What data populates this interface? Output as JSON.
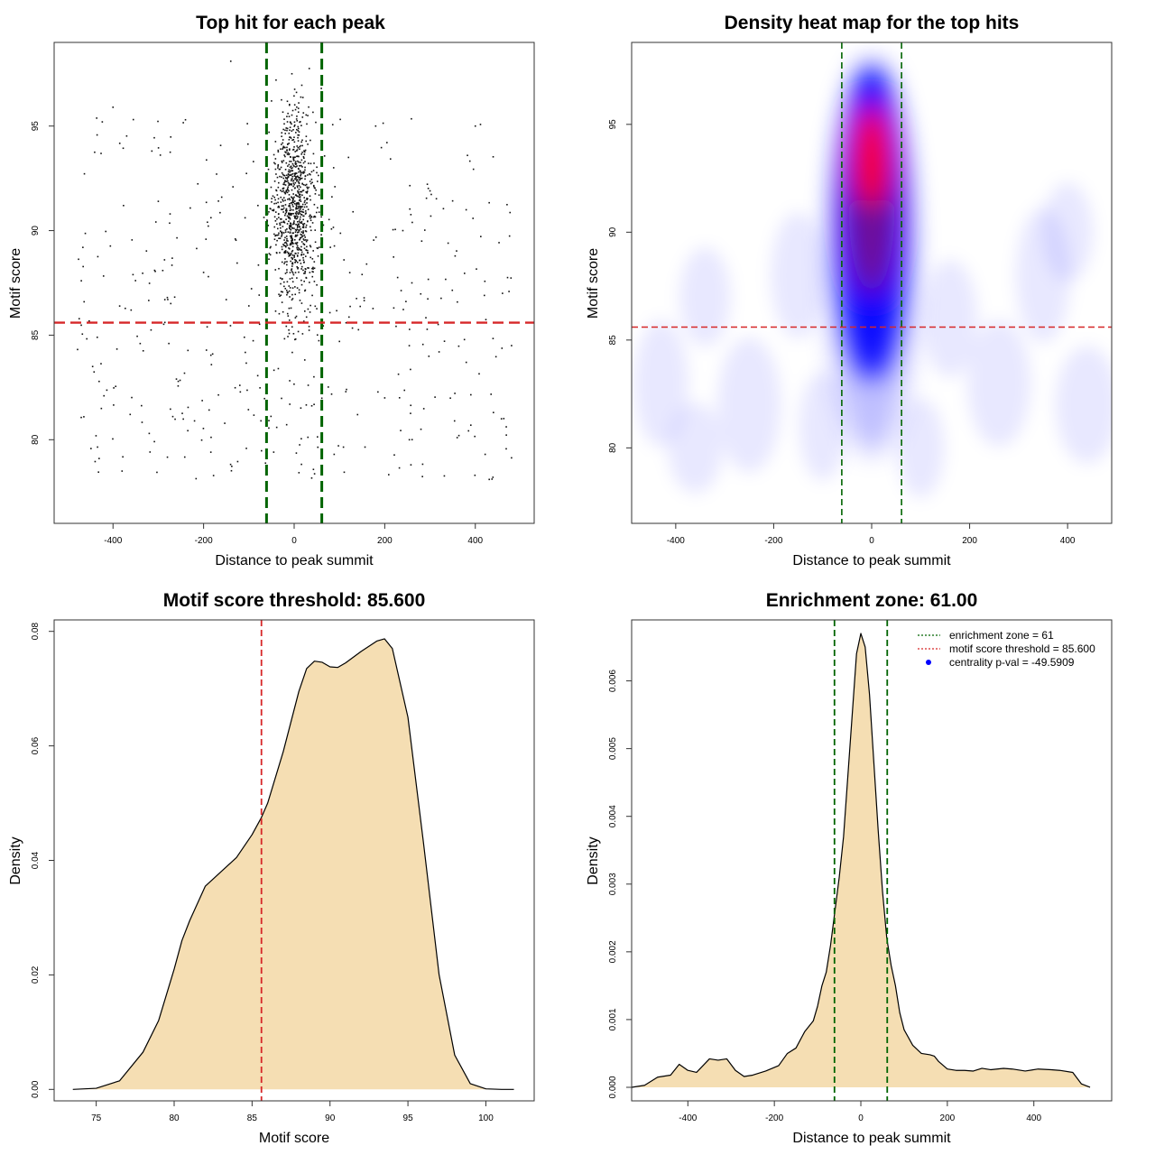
{
  "colors": {
    "threshold_red": "#d62728",
    "zone_green": "#006400",
    "density_fill": "#f5deb3",
    "heat_low": "#ffffff",
    "heat_mid": "#0000ff",
    "heat_high": "#ff0000"
  },
  "chart_data": [
    {
      "type": "scatter",
      "title": "Top hit for each peak",
      "xlabel": "Distance to peak summit",
      "ylabel": "Motif score",
      "xlim": [
        -530,
        530
      ],
      "ylim": [
        76.0,
        99.0
      ],
      "xticks": [
        -400,
        -200,
        0,
        200,
        400
      ],
      "yticks": [
        80,
        85,
        90,
        95
      ],
      "hlines": [
        85.6
      ],
      "vlines": [
        -61,
        61
      ],
      "point_sample": {
        "x": [
          -470,
          -445,
          -420,
          -400,
          -380,
          -360,
          -340,
          -320,
          -300,
          -280,
          -260,
          -240,
          -220,
          -200,
          -180,
          -160,
          -140,
          -120,
          -100,
          -80,
          -60,
          -40,
          -20,
          0,
          20,
          40,
          60,
          80,
          100,
          120,
          140,
          160,
          180,
          200,
          220,
          240,
          260,
          280,
          300,
          320,
          340,
          360,
          380,
          400,
          420,
          440,
          460,
          480,
          -60,
          -40,
          -20,
          0,
          20,
          40,
          60,
          -50,
          -30,
          -10,
          10,
          30,
          50,
          -45,
          -15,
          15,
          45,
          -5,
          5,
          -25,
          25,
          -35,
          35,
          -55,
          55,
          -130,
          130,
          -150,
          150,
          -90,
          90,
          -110,
          110
        ],
        "y": [
          87.6,
          83.5,
          82.1,
          95.9,
          78.5,
          86.2,
          84.6,
          80.3,
          91.4,
          86.8,
          82.9,
          95.3,
          80.9,
          88.0,
          84.1,
          91.6,
          98.1,
          82.6,
          86.4,
          91.2,
          93.4,
          97.2,
          88.5,
          94.0,
          90.3,
          86.9,
          96.8,
          89.2,
          84.7,
          93.5,
          81.2,
          88.4,
          95.0,
          82.0,
          86.3,
          90.0,
          87.5,
          80.5,
          91.9,
          84.2,
          89.4,
          80.1,
          83.7,
          95.0,
          86.9,
          81.3,
          87.0,
          84.5,
          90.5,
          92.7,
          94.8,
          91.6,
          88.7,
          92.3,
          89.8,
          96.2,
          93.9,
          90.1,
          92.8,
          95.5,
          87.4,
          91.0,
          89.3,
          93.1,
          88.2,
          97.5,
          85.9,
          92.0,
          90.8,
          83.4,
          86.1,
          88.9,
          91.7,
          89.6,
          90.9,
          86.7,
          87.9,
          93.3,
          92.1,
          84.9,
          88.6
        ]
      }
    },
    {
      "type": "heatmap",
      "title": "Density heat map for the top hits",
      "xlabel": "Distance to peak summit",
      "ylabel": "Motif score",
      "xlim": [
        -490,
        490
      ],
      "ylim": [
        76.5,
        98.8
      ],
      "xticks": [
        -400,
        -200,
        0,
        200,
        400
      ],
      "yticks": [
        80,
        85,
        90,
        95
      ],
      "hlines": [
        85.6
      ],
      "vlines": [
        -61,
        61
      ],
      "density_peak": {
        "x": 0,
        "y": 93.5
      }
    },
    {
      "type": "area",
      "title": "Motif score threshold: 85.600",
      "xlabel": "Motif score",
      "ylabel": "Density",
      "xlim": [
        72.3,
        103.1
      ],
      "ylim": [
        -0.002,
        0.082
      ],
      "xticks": [
        75,
        80,
        85,
        90,
        95,
        100
      ],
      "yticks": [
        0.0,
        0.02,
        0.04,
        0.06,
        0.08
      ],
      "vlines": [
        85.6
      ],
      "x": [
        73.5,
        75.0,
        76.5,
        78.0,
        79.0,
        80.0,
        80.5,
        81.0,
        82.0,
        83.0,
        84.0,
        85.0,
        85.6,
        86.0,
        87.0,
        88.0,
        88.5,
        89.0,
        89.5,
        90.0,
        90.5,
        91.0,
        92.0,
        93.0,
        93.5,
        94.0,
        95.0,
        96.0,
        97.0,
        98.0,
        99.0,
        100.0,
        101.0,
        101.8
      ],
      "y": [
        0.0,
        0.0002,
        0.0015,
        0.0065,
        0.012,
        0.021,
        0.026,
        0.0295,
        0.0355,
        0.038,
        0.0405,
        0.0445,
        0.0475,
        0.05,
        0.059,
        0.0695,
        0.0735,
        0.0748,
        0.0746,
        0.0738,
        0.0737,
        0.0745,
        0.0765,
        0.0783,
        0.0787,
        0.077,
        0.065,
        0.043,
        0.02,
        0.006,
        0.001,
        0.0001,
        0.0,
        0.0
      ]
    },
    {
      "type": "area",
      "title": "Enrichment zone: 61.00",
      "xlabel": "Distance to peak summit",
      "ylabel": "Density",
      "xlim": [
        -530,
        580
      ],
      "ylim": [
        -0.0002,
        0.0069
      ],
      "xticks": [
        -400,
        -200,
        0,
        200,
        400
      ],
      "yticks": [
        "0.000",
        "0.001",
        "0.002",
        "0.003",
        "0.004",
        "0.005",
        "0.006"
      ],
      "vlines": [
        -61,
        61
      ],
      "x": [
        -530,
        -500,
        -470,
        -440,
        -420,
        -400,
        -380,
        -350,
        -330,
        -310,
        -290,
        -270,
        -250,
        -220,
        -190,
        -170,
        -150,
        -130,
        -110,
        -100,
        -90,
        -80,
        -70,
        -60,
        -50,
        -40,
        -30,
        -20,
        -10,
        0,
        10,
        20,
        30,
        40,
        50,
        60,
        70,
        80,
        90,
        100,
        120,
        140,
        160,
        170,
        180,
        200,
        220,
        240,
        260,
        280,
        300,
        330,
        350,
        380,
        410,
        440,
        460,
        490,
        510,
        530
      ],
      "y": [
        0.0,
        3e-05,
        0.00015,
        0.00018,
        0.00034,
        0.00025,
        0.00022,
        0.00042,
        0.0004,
        0.00042,
        0.00025,
        0.00016,
        0.00018,
        0.00024,
        0.00032,
        0.0005,
        0.00058,
        0.00082,
        0.00098,
        0.0012,
        0.0015,
        0.0017,
        0.0021,
        0.0026,
        0.0031,
        0.0037,
        0.0046,
        0.0055,
        0.0064,
        0.0067,
        0.0065,
        0.0058,
        0.0048,
        0.0038,
        0.0029,
        0.0022,
        0.0018,
        0.0015,
        0.0011,
        0.00085,
        0.00062,
        0.0005,
        0.00048,
        0.00046,
        0.00038,
        0.00027,
        0.00025,
        0.00025,
        0.00024,
        0.00028,
        0.00026,
        0.00028,
        0.00027,
        0.00024,
        0.00027,
        0.00026,
        0.00025,
        0.00022,
        5e-05,
        0.0
      ],
      "legend": {
        "placement": "top-right",
        "entries": [
          "enrichment zone = 61",
          "motif score threshold = 85.600",
          "centrality p-val = -49.5909"
        ]
      }
    }
  ]
}
